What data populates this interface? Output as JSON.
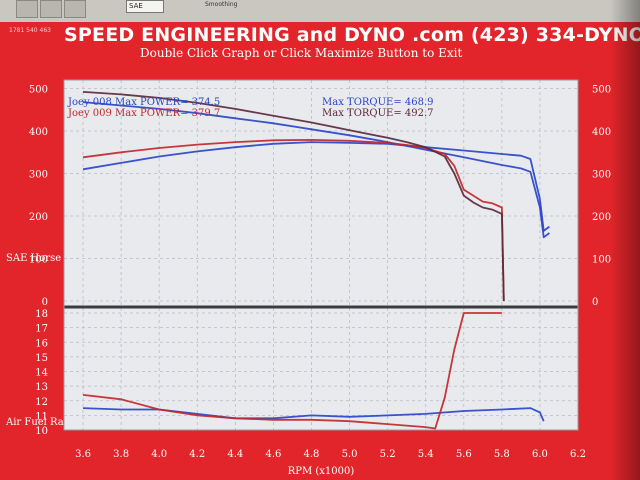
{
  "window": {
    "select_value": "SAE",
    "topbar_caption": "Smoothing",
    "corner_id": "1781 540 463"
  },
  "header": {
    "title": "SPEED ENGINEERING and DYNO .com     (423) 334-DYNO",
    "subtitle": "Double Click Graph or Click Maximize Button to Exit"
  },
  "colors": {
    "frame": "#e2252a",
    "plot_bg": "#e9eaee",
    "grid": "#b9bcc4",
    "blue_run": "#2a44c8",
    "red_run": "#c0282c",
    "dark_run": "#5a2a3a"
  },
  "chart_data": [
    {
      "type": "line",
      "panel": "power-torque",
      "ylabel": "SAE Horse",
      "x_range": [
        3.5,
        6.2
      ],
      "ylim": [
        0,
        520
      ],
      "yticks": [
        0,
        100,
        200,
        300,
        400,
        500
      ],
      "grid": true,
      "annotations": [
        {
          "text": "Joey 008  Max POWER= 374.5"
        },
        {
          "text": "Joey 009  Max POWER= 379.7"
        },
        {
          "text": "Max TORQUE= 468.9"
        },
        {
          "text": "Max TORQUE= 492.7"
        }
      ],
      "series": [
        {
          "color": "#2a44c8",
          "kind": "power",
          "x": [
            3.6,
            3.8,
            4.0,
            4.2,
            4.4,
            4.6,
            4.8,
            5.0,
            5.2,
            5.4,
            5.6,
            5.8,
            5.9,
            5.95,
            6.0,
            6.02,
            6.05
          ],
          "y": [
            310,
            325,
            340,
            352,
            362,
            370,
            374,
            372,
            370,
            362,
            354,
            346,
            342,
            334,
            240,
            165,
            175
          ]
        },
        {
          "color": "#2a44c8",
          "kind": "torque",
          "x": [
            3.6,
            3.8,
            4.0,
            4.2,
            4.4,
            4.6,
            4.8,
            5.0,
            5.2,
            5.4,
            5.6,
            5.8,
            5.9,
            5.95,
            6.0,
            6.02,
            6.05
          ],
          "y": [
            468,
            460,
            452,
            442,
            430,
            418,
            404,
            390,
            374,
            356,
            338,
            320,
            312,
            304,
            220,
            150,
            160
          ]
        },
        {
          "color": "#c0282c",
          "kind": "power",
          "x": [
            3.6,
            3.8,
            4.0,
            4.2,
            4.4,
            4.6,
            4.8,
            5.0,
            5.2,
            5.3,
            5.4,
            5.5,
            5.55,
            5.6,
            5.65,
            5.7,
            5.75,
            5.8,
            5.81
          ],
          "y": [
            338,
            350,
            360,
            368,
            374,
            378,
            379,
            377,
            372,
            367,
            360,
            346,
            318,
            262,
            248,
            234,
            230,
            220,
            0
          ]
        },
        {
          "color": "#5a2a3a",
          "kind": "torque",
          "x": [
            3.6,
            3.8,
            4.0,
            4.2,
            4.4,
            4.6,
            4.8,
            5.0,
            5.2,
            5.3,
            5.4,
            5.5,
            5.55,
            5.6,
            5.65,
            5.7,
            5.75,
            5.8,
            5.81
          ],
          "y": [
            492,
            486,
            478,
            466,
            452,
            436,
            420,
            402,
            384,
            374,
            362,
            340,
            300,
            248,
            232,
            220,
            215,
            205,
            0
          ]
        }
      ]
    },
    {
      "type": "line",
      "panel": "air-fuel",
      "ylabel": "Air Fuel Ra",
      "xlabel": "RPM (x1000)",
      "x_range": [
        3.5,
        6.2
      ],
      "xticks": [
        3.6,
        3.8,
        4.0,
        4.2,
        4.4,
        4.6,
        4.8,
        5.0,
        5.2,
        5.4,
        5.6,
        5.8,
        6.0,
        6.2
      ],
      "ylim": [
        10,
        18
      ],
      "yticks": [
        10,
        11,
        12,
        13,
        14,
        15,
        16,
        17,
        18
      ],
      "grid": true,
      "series": [
        {
          "color": "#2a44c8",
          "x": [
            3.6,
            3.8,
            4.0,
            4.2,
            4.4,
            4.6,
            4.8,
            5.0,
            5.2,
            5.4,
            5.6,
            5.8,
            5.95,
            6.0,
            6.02
          ],
          "y": [
            11.5,
            11.4,
            11.4,
            11.1,
            10.8,
            10.8,
            11.0,
            10.9,
            11.0,
            11.1,
            11.3,
            11.4,
            11.5,
            11.2,
            10.6
          ]
        },
        {
          "color": "#c0282c",
          "x": [
            3.6,
            3.8,
            4.0,
            4.2,
            4.4,
            4.6,
            4.8,
            5.0,
            5.2,
            5.4,
            5.45,
            5.5,
            5.55,
            5.6,
            5.65,
            5.8
          ],
          "y": [
            12.4,
            12.1,
            11.4,
            11.0,
            10.8,
            10.7,
            10.7,
            10.6,
            10.4,
            10.2,
            10.1,
            12.2,
            15.5,
            18.0,
            18.0,
            18.0
          ]
        }
      ]
    }
  ]
}
